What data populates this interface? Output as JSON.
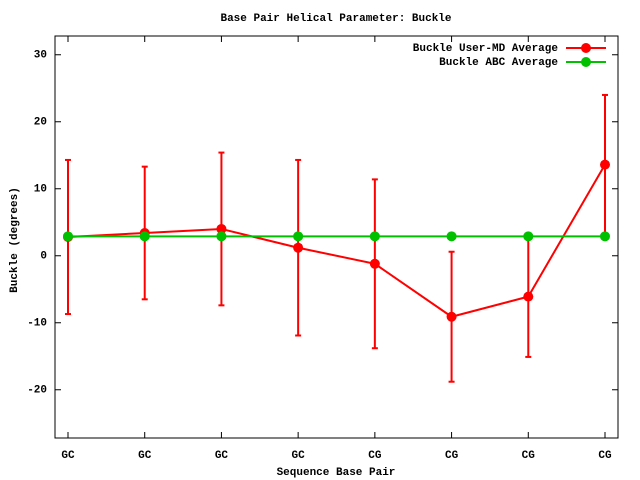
{
  "chart_data": {
    "type": "line",
    "title": "Base Pair Helical Parameter: Buckle",
    "x_label": "Sequence Base Pair",
    "y_label": "Buckle (degrees)",
    "categories": [
      "GC",
      "GC",
      "GC",
      "GC",
      "CG",
      "CG",
      "CG",
      "CG"
    ],
    "series": [
      {
        "name": "Buckle User-MD Average",
        "color": "#ff0000",
        "values": [
          2.8,
          3.4,
          4.0,
          1.2,
          -1.2,
          -9.1,
          -6.1,
          13.6
        ],
        "errors": [
          11.5,
          9.9,
          11.4,
          13.1,
          12.6,
          9.7,
          9.0,
          10.4
        ]
      },
      {
        "name": "Buckle ABC Average",
        "color": "#00c000",
        "values": [
          2.9,
          2.9,
          2.9,
          2.9,
          2.9,
          2.9,
          2.9,
          2.9
        ]
      }
    ],
    "ylim": [
      -27.2,
      32.8
    ],
    "yticks": [
      -20,
      -10,
      0,
      10,
      20,
      30
    ],
    "grid": false,
    "legend": "top-right"
  }
}
